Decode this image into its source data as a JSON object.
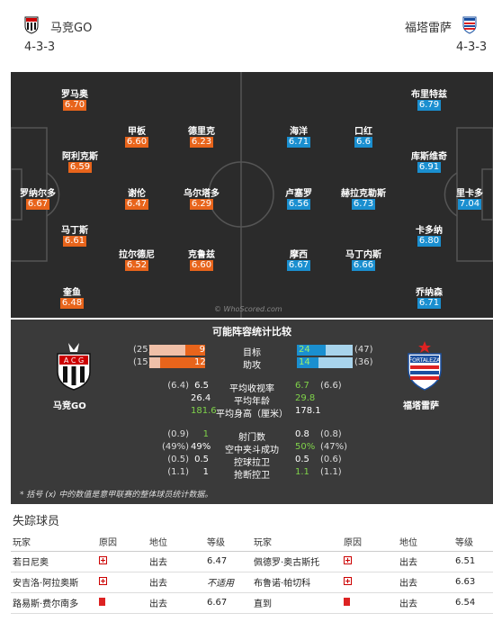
{
  "home": {
    "name": "马竞GO",
    "formation": "4-3-3",
    "colors": {
      "rating": "#e8641b"
    }
  },
  "away": {
    "name": "福塔雷萨",
    "formation": "4-3-3",
    "colors": {
      "rating": "#1a8fd0"
    }
  },
  "home_players": [
    {
      "name": "罗马奥",
      "rating": "6.70"
    },
    {
      "name": "阿利克斯",
      "rating": "6.59"
    },
    {
      "name": "罗纳尔多",
      "rating": "6.67"
    },
    {
      "name": "马丁斯",
      "rating": "6.61"
    },
    {
      "name": "奎鱼",
      "rating": "6.48"
    },
    {
      "name": "甲板",
      "rating": "6.60"
    },
    {
      "name": "谢伦",
      "rating": "6.47"
    },
    {
      "name": "拉尔德尼",
      "rating": "6.52"
    },
    {
      "name": "德里克",
      "rating": "6.23"
    },
    {
      "name": "乌尔塔多",
      "rating": "6.29"
    },
    {
      "name": "克鲁兹",
      "rating": "6.60"
    }
  ],
  "away_players": [
    {
      "name": "海洋",
      "rating": "6.71"
    },
    {
      "name": "卢塞罗",
      "rating": "6.56"
    },
    {
      "name": "摩西",
      "rating": "6.67"
    },
    {
      "name": "口红",
      "rating": "6.6"
    },
    {
      "name": "赫拉克勒斯",
      "rating": "6.73"
    },
    {
      "name": "马丁内斯",
      "rating": "6.66"
    },
    {
      "name": "布里特兹",
      "rating": "6.79"
    },
    {
      "name": "库斯维奇",
      "rating": "6.91"
    },
    {
      "name": "卡多纳",
      "rating": "6.80"
    },
    {
      "name": "乔纳森",
      "rating": "6.71"
    },
    {
      "name": "里卡多",
      "rating": "7.04"
    }
  ],
  "watermark": "© WhoScored.com",
  "stats": {
    "title": "可能阵容统计比较",
    "home_label": "马竞GO",
    "away_label": "福塔雷萨",
    "bars": [
      {
        "label": "目标",
        "home_total": "(25)",
        "home": "9",
        "away": "24",
        "away_total": "(47)",
        "home_frac": 0.36,
        "away_frac": 0.51
      },
      {
        "label": "助攻",
        "home_total": "(15)",
        "home": "12",
        "away": "14",
        "away_total": "(36)",
        "home_frac": 0.8,
        "away_frac": 0.39
      }
    ],
    "rows": [
      {
        "home_total": "(6.4)",
        "home": "6.5",
        "label": "平均收视率",
        "away": "6.7",
        "away_total": "(6.6)",
        "winner": "away"
      },
      {
        "home_total": "",
        "home": "26.4",
        "label": "平均年龄",
        "away": "29.8",
        "away_total": "",
        "winner": "away"
      },
      {
        "home_total": "",
        "home": "181.6",
        "label": "平均身高（厘米）",
        "away": "178.1",
        "away_total": "",
        "winner": "home"
      },
      {
        "home_total": "(0.9)",
        "home": "1",
        "label": "射门数",
        "away": "0.8",
        "away_total": "(0.8)",
        "winner": "home"
      },
      {
        "home_total": "(49%)",
        "home": "49%",
        "label": "空中夹斗成功",
        "away": "50%",
        "away_total": "(47%)",
        "winner": "away"
      },
      {
        "home_total": "(0.5)",
        "home": "0.5",
        "label": "控球拉卫",
        "away": "0.5",
        "away_total": "(0.6)",
        "winner": "none"
      },
      {
        "home_total": "(1.1)",
        "home": "1",
        "label": "抢断控卫",
        "away": "1.1",
        "away_total": "(1.1)",
        "winner": "away"
      }
    ],
    "note": "* 括号 (x) 中的数值是意甲联赛的整体球员统计数据。"
  },
  "missing": {
    "title": "失踪球员",
    "headers": [
      "玩家",
      "原因",
      "地位",
      "等级",
      "玩家",
      "原因",
      "地位",
      "等级"
    ],
    "rows": [
      {
        "p1": "若日尼奥",
        "r1": "injury",
        "s1": "出去",
        "g1": "6.47",
        "p2": "佩德罗·奥古斯托",
        "r2": "injury",
        "s2": "出去",
        "g2": "6.51"
      },
      {
        "p1": "安吉洛·阿拉奥斯",
        "r1": "injury",
        "s1": "出去",
        "g1": "不适用",
        "p2": "布鲁诺·帕切科",
        "r2": "injury",
        "s2": "出去",
        "g2": "6.63"
      },
      {
        "p1": "路易斯·费尔南多",
        "r1": "red-card",
        "s1": "出去",
        "g1": "6.67",
        "p2": "直到",
        "r2": "red-card",
        "s2": "出去",
        "g2": "6.54"
      }
    ]
  }
}
